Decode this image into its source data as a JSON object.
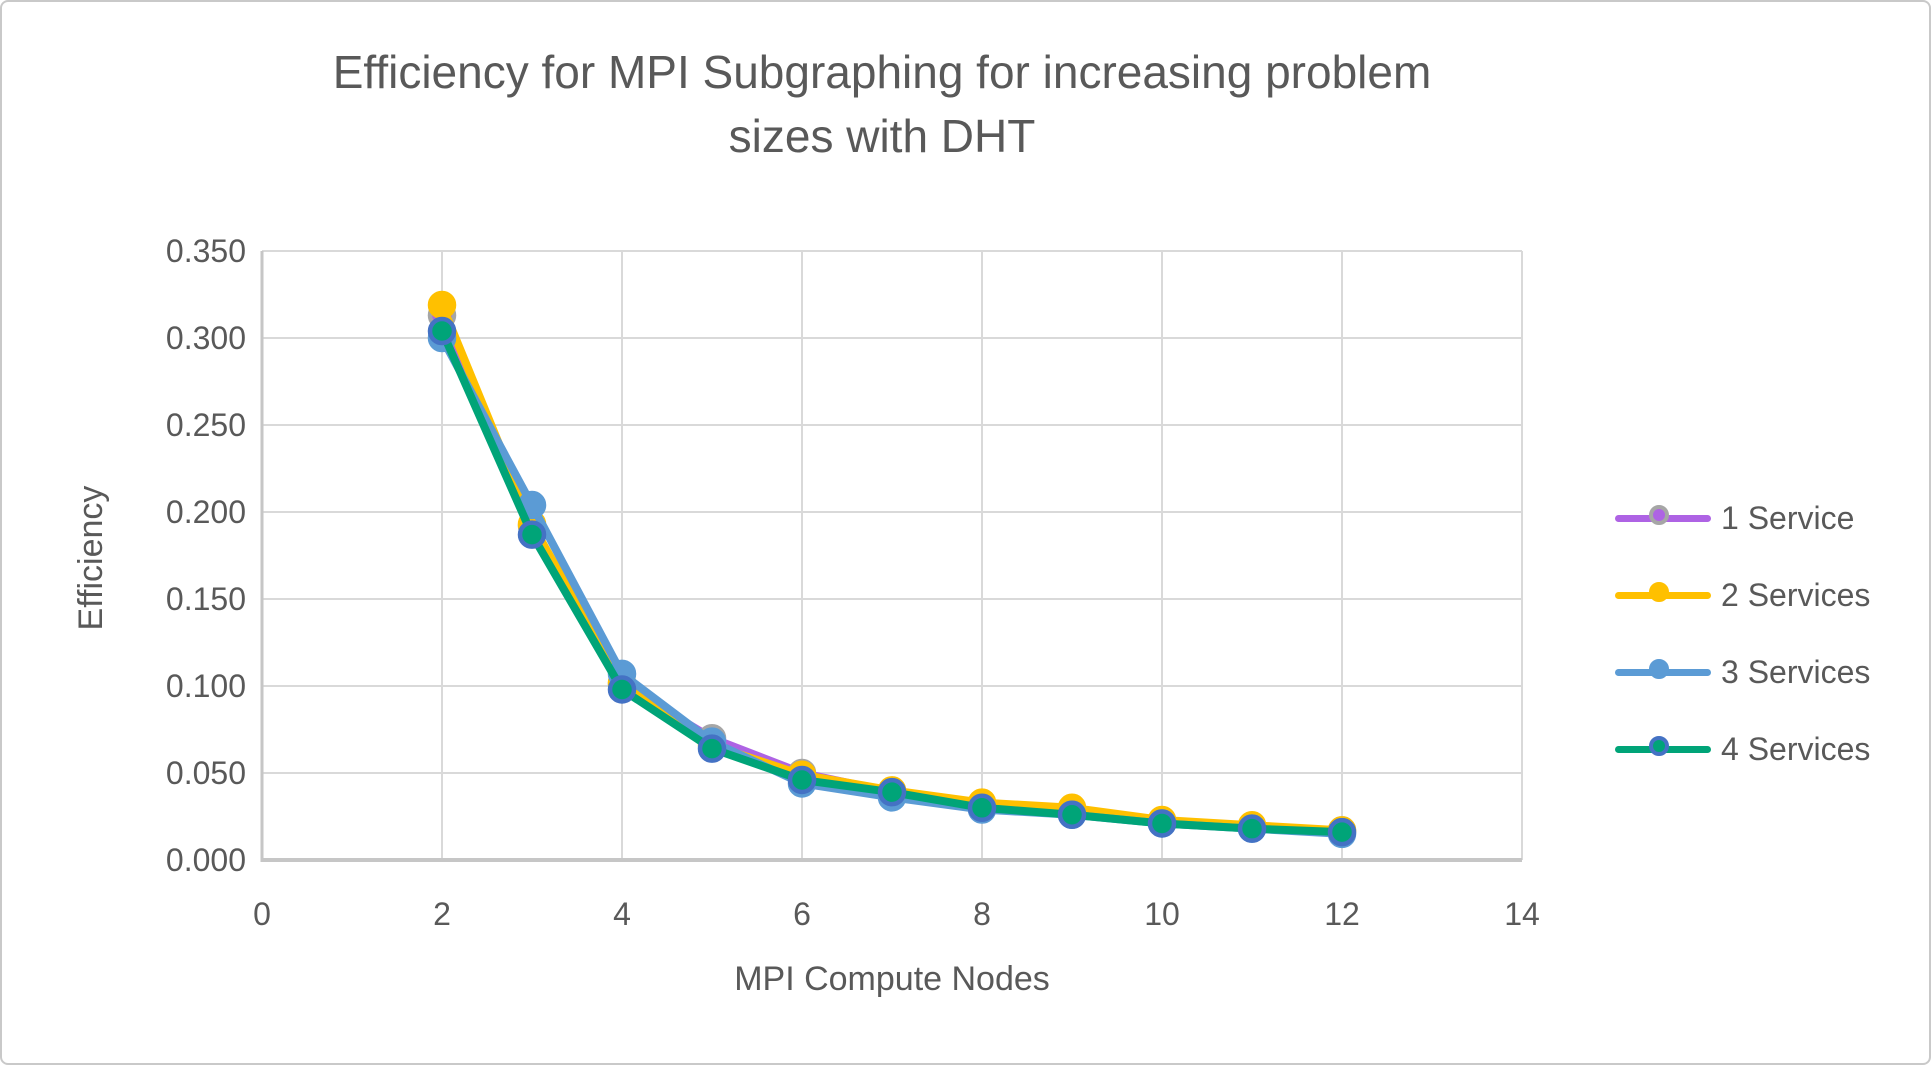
{
  "title": {
    "line1": "Efficiency for MPI Subgraphing for increasing problem",
    "line2": "sizes with DHT"
  },
  "chart_data": {
    "type": "line",
    "title": "Efficiency for MPI Subgraphing for increasing problem sizes with DHT",
    "xlabel": "MPI Compute Nodes",
    "ylabel": "Efficiency",
    "xlim": [
      0,
      14
    ],
    "ylim": [
      0,
      0.35
    ],
    "grid": true,
    "legend_position": "right",
    "x_ticks": [
      "0",
      "2",
      "4",
      "6",
      "8",
      "10",
      "12",
      "14"
    ],
    "y_ticks": [
      "0.000",
      "0.050",
      "0.100",
      "0.150",
      "0.200",
      "0.250",
      "0.300",
      "0.350"
    ],
    "x_gridline_values": [
      2,
      4,
      6,
      8,
      10,
      12,
      14
    ],
    "y_gridline_values": [
      0.05,
      0.1,
      0.15,
      0.2,
      0.25,
      0.3,
      0.35
    ],
    "x": [
      2,
      3,
      4,
      5,
      6,
      7,
      8,
      9,
      10,
      11,
      12
    ],
    "series": [
      {
        "name": "1 Service",
        "color": "#ae63e4",
        "marker_border": "#a6a6a6",
        "values": [
          0.313,
          0.192,
          0.101,
          0.07,
          0.05,
          0.039,
          0.031,
          0.027,
          0.022,
          0.019,
          0.017
        ]
      },
      {
        "name": "2 Services",
        "color": "#ffc000",
        "marker_border": "#ffc000",
        "values": [
          0.319,
          0.193,
          0.102,
          0.066,
          0.049,
          0.04,
          0.033,
          0.03,
          0.023,
          0.02,
          0.017
        ]
      },
      {
        "name": "3 Services",
        "color": "#5b9bd5",
        "marker_border": "#5b9bd5",
        "values": [
          0.3,
          0.204,
          0.107,
          0.068,
          0.044,
          0.036,
          0.029,
          0.026,
          0.021,
          0.018,
          0.015
        ]
      },
      {
        "name": "4 Services",
        "color": "#00a478",
        "marker_border": "#4472c4",
        "values": [
          0.304,
          0.187,
          0.098,
          0.064,
          0.046,
          0.039,
          0.03,
          0.026,
          0.021,
          0.018,
          0.016
        ]
      }
    ]
  },
  "colors": {
    "text": "#595959",
    "grid": "#d9d9d9",
    "axis": "#c6c6c6",
    "background": "#ffffff",
    "frame_border": "#c9c9c9"
  }
}
